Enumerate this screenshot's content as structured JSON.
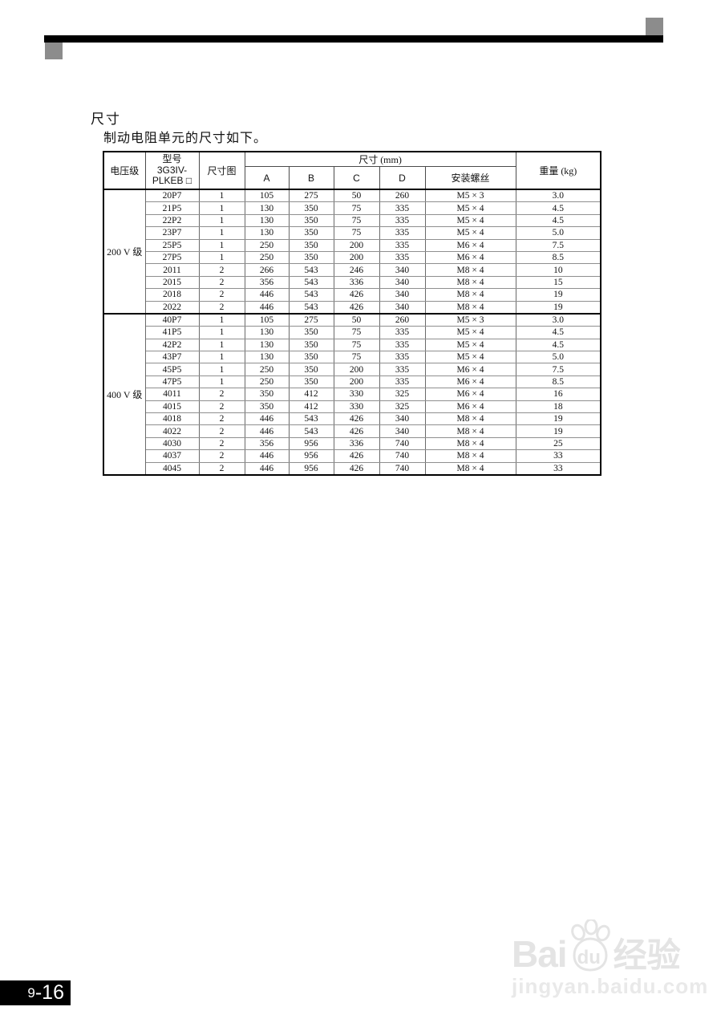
{
  "page": {
    "title": "尺寸",
    "subtitle": "制动电阻单元的尺寸如下。",
    "page_number_prefix": "9",
    "page_number_suffix": "-16"
  },
  "watermark": {
    "logo_bai": "Bai",
    "logo_du": "du",
    "logo_cn": "经验",
    "url": "jingyan.baidu.com"
  },
  "table": {
    "headers": {
      "voltage_class": "电压级",
      "model_line1": "型号",
      "model_line2": "3G3IV-",
      "model_line3": "PLKEB □",
      "dim_figure": "尺寸图",
      "dimensions_group": "尺寸 (mm)",
      "col_a": "A",
      "col_b": "B",
      "col_c": "C",
      "col_d": "D",
      "screws": "安装螺丝",
      "weight": "重量 (kg)"
    },
    "groups": [
      {
        "voltage": "200 V 级",
        "rows": [
          [
            "20P7",
            "1",
            "105",
            "275",
            "50",
            "260",
            "M5 × 3",
            "3.0"
          ],
          [
            "21P5",
            "1",
            "130",
            "350",
            "75",
            "335",
            "M5 × 4",
            "4.5"
          ],
          [
            "22P2",
            "1",
            "130",
            "350",
            "75",
            "335",
            "M5 × 4",
            "4.5"
          ],
          [
            "23P7",
            "1",
            "130",
            "350",
            "75",
            "335",
            "M5 × 4",
            "5.0"
          ],
          [
            "25P5",
            "1",
            "250",
            "350",
            "200",
            "335",
            "M6 × 4",
            "7.5"
          ],
          [
            "27P5",
            "1",
            "250",
            "350",
            "200",
            "335",
            "M6 × 4",
            "8.5"
          ],
          [
            "2011",
            "2",
            "266",
            "543",
            "246",
            "340",
            "M8 × 4",
            "10"
          ],
          [
            "2015",
            "2",
            "356",
            "543",
            "336",
            "340",
            "M8 × 4",
            "15"
          ],
          [
            "2018",
            "2",
            "446",
            "543",
            "426",
            "340",
            "M8 × 4",
            "19"
          ],
          [
            "2022",
            "2",
            "446",
            "543",
            "426",
            "340",
            "M8 × 4",
            "19"
          ]
        ]
      },
      {
        "voltage": "400 V 级",
        "rows": [
          [
            "40P7",
            "1",
            "105",
            "275",
            "50",
            "260",
            "M5 × 3",
            "3.0"
          ],
          [
            "41P5",
            "1",
            "130",
            "350",
            "75",
            "335",
            "M5 × 4",
            "4.5"
          ],
          [
            "42P2",
            "1",
            "130",
            "350",
            "75",
            "335",
            "M5 × 4",
            "4.5"
          ],
          [
            "43P7",
            "1",
            "130",
            "350",
            "75",
            "335",
            "M5 × 4",
            "5.0"
          ],
          [
            "45P5",
            "1",
            "250",
            "350",
            "200",
            "335",
            "M6 × 4",
            "7.5"
          ],
          [
            "47P5",
            "1",
            "250",
            "350",
            "200",
            "335",
            "M6 × 4",
            "8.5"
          ],
          [
            "4011",
            "2",
            "350",
            "412",
            "330",
            "325",
            "M6 × 4",
            "16"
          ],
          [
            "4015",
            "2",
            "350",
            "412",
            "330",
            "325",
            "M6 × 4",
            "18"
          ],
          [
            "4018",
            "2",
            "446",
            "543",
            "426",
            "340",
            "M8 × 4",
            "19"
          ],
          [
            "4022",
            "2",
            "446",
            "543",
            "426",
            "340",
            "M8 × 4",
            "19"
          ],
          [
            "4030",
            "2",
            "356",
            "956",
            "336",
            "740",
            "M8 × 4",
            "25"
          ],
          [
            "4037",
            "2",
            "446",
            "956",
            "426",
            "740",
            "M8 × 4",
            "33"
          ],
          [
            "4045",
            "2",
            "446",
            "956",
            "426",
            "740",
            "M8 × 4",
            "33"
          ]
        ]
      }
    ]
  },
  "colors": {
    "bar_black": "#000000",
    "square_gray": "#8c8c8c",
    "badge_bg": "#000000",
    "badge_text": "#ffffff",
    "watermark_gray": "#e4e4e4"
  }
}
